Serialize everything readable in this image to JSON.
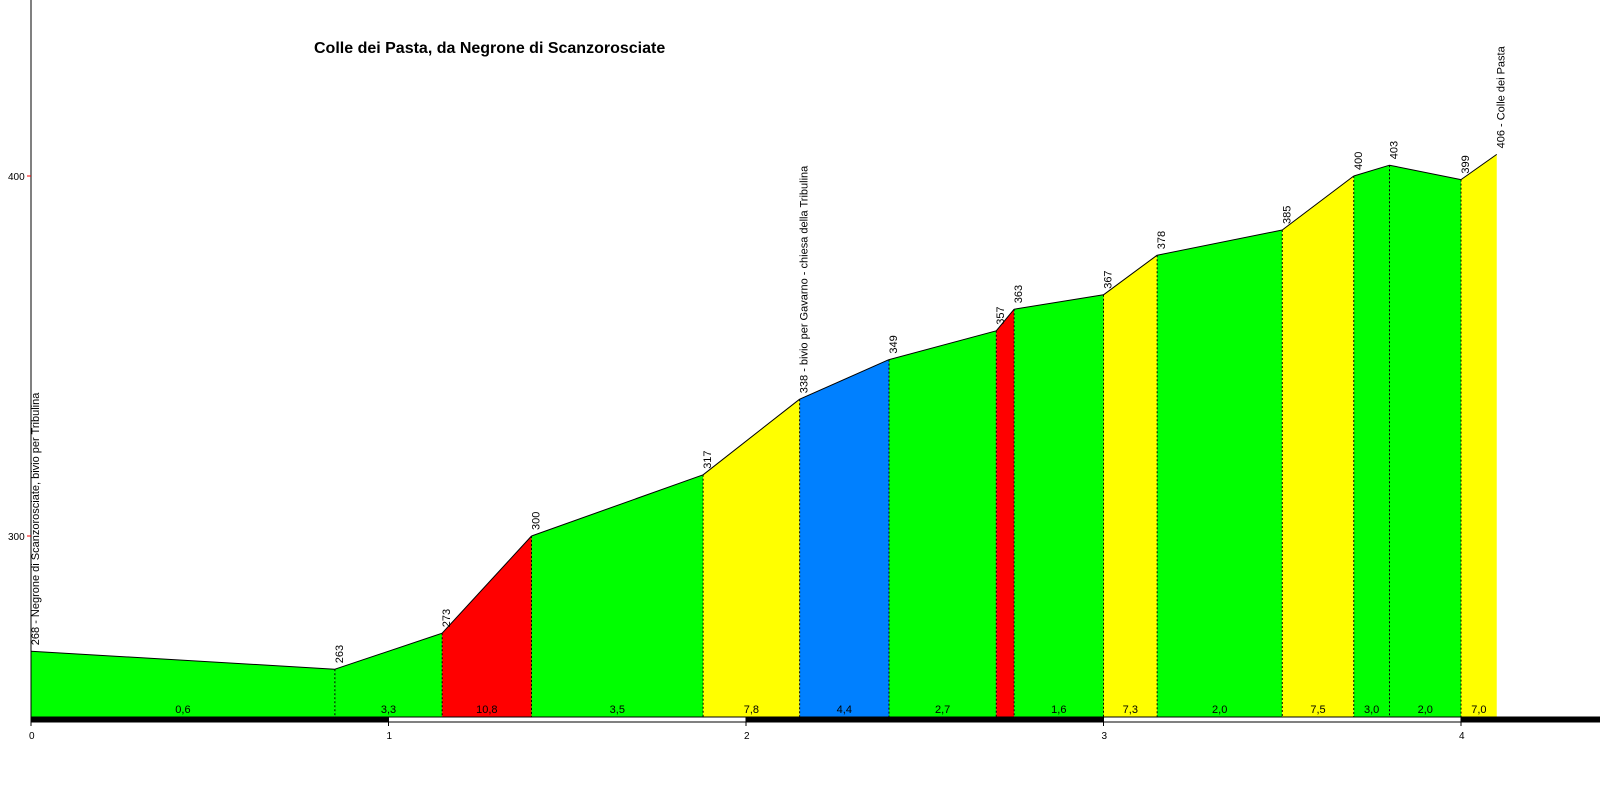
{
  "chart_data": {
    "type": "area",
    "title": "Colle dei Pasta, da Negrone di Scanzorosciate",
    "x_ticks": [
      "0",
      "1",
      "2",
      "3",
      "4"
    ],
    "y_ticks": [
      "300",
      "400"
    ],
    "xlim": [
      0,
      4.3
    ],
    "ylim": [
      249,
      449
    ],
    "profile": [
      {
        "x": 0.0,
        "y": 268,
        "label": "268 - Negrone di Scanzorosciate, bivio per Tribulina"
      },
      {
        "x": 0.85,
        "y": 263,
        "label": "263"
      },
      {
        "x": 1.15,
        "y": 273,
        "label": "273"
      },
      {
        "x": 1.4,
        "y": 300,
        "label": "300"
      },
      {
        "x": 1.88,
        "y": 317,
        "label": "317"
      },
      {
        "x": 2.15,
        "y": 338,
        "label": "338 - bivio per Gavarno - chiesa della Tribulina"
      },
      {
        "x": 2.4,
        "y": 349,
        "label": "349"
      },
      {
        "x": 2.7,
        "y": 357,
        "label": "357"
      },
      {
        "x": 2.75,
        "y": 363,
        "label": "363"
      },
      {
        "x": 3.0,
        "y": 367,
        "label": "367"
      },
      {
        "x": 3.15,
        "y": 378,
        "label": "378"
      },
      {
        "x": 3.5,
        "y": 385,
        "label": "385"
      },
      {
        "x": 3.7,
        "y": 400,
        "label": "400"
      },
      {
        "x": 3.8,
        "y": 403,
        "label": "403"
      },
      {
        "x": 4.0,
        "y": 399,
        "label": "399"
      },
      {
        "x": 4.1,
        "y": 406,
        "label": "406 - Colle dei Pasta"
      }
    ],
    "segments": [
      {
        "gradient": "0,6",
        "color": "#00ff00"
      },
      {
        "gradient": "3,3",
        "color": "#00ff00"
      },
      {
        "gradient": "10,8",
        "color": "#ff0000"
      },
      {
        "gradient": "3,5",
        "color": "#00ff00"
      },
      {
        "gradient": "7,8",
        "color": "#ffff00"
      },
      {
        "gradient": "4,4",
        "color": "#0080ff"
      },
      {
        "gradient": "2,7",
        "color": "#00ff00"
      },
      {
        "gradient": "",
        "color": "#ff0000"
      },
      {
        "gradient": "1,6",
        "color": "#00ff00"
      },
      {
        "gradient": "7,3",
        "color": "#ffff00"
      },
      {
        "gradient": "2,0",
        "color": "#00ff00"
      },
      {
        "gradient": "7,5",
        "color": "#ffff00"
      },
      {
        "gradient": "3,0",
        "color": "#00ff00"
      },
      {
        "gradient": "2,0",
        "color": "#00ff00"
      },
      {
        "gradient": "7,0",
        "color": "#ffff00"
      }
    ],
    "colors": {
      "easy": "#00ff00",
      "medium": "#ffff00",
      "moderate": "#0080ff",
      "steep": "#ff0000",
      "axis": "#000000",
      "y_tick_mark": "#ff0000"
    }
  }
}
